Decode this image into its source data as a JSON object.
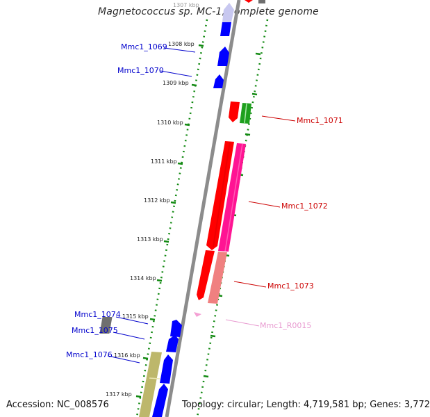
{
  "title": "Magnetococcus sp. MC-1, complete genome",
  "accession": "Accession: NC_008576",
  "topology": "Topology: circular; Length: 4,719,581 bp; Genes: 3,772",
  "scale_labels": [
    {
      "label": "1307 kbp"
    },
    {
      "label": "1308 kbp"
    },
    {
      "label": "1309 kbp"
    },
    {
      "label": "1310 kbp"
    },
    {
      "label": "1311 kbp"
    },
    {
      "label": "1312 kbp"
    },
    {
      "label": "1313 kbp"
    },
    {
      "label": "1314 kbp"
    },
    {
      "label": "1315 kbp"
    },
    {
      "label": "1316 kbp"
    },
    {
      "label": "1317 kbp"
    }
  ],
  "gene_labels": [
    {
      "name": "Mmc1_1069",
      "color": "#0000cc"
    },
    {
      "name": "Mmc1_1070",
      "color": "#0000cc"
    },
    {
      "name": "Mmc1_1071",
      "color": "#cc0000"
    },
    {
      "name": "Mmc1_1072",
      "color": "#cc0000"
    },
    {
      "name": "Mmc1_1073",
      "color": "#cc0000"
    },
    {
      "name": "Mmc1_R0015",
      "color": "#e89ad0"
    },
    {
      "name": "Mmc1_1074",
      "color": "#0000cc"
    },
    {
      "name": "Mmc1_1075",
      "color": "#0000cc"
    },
    {
      "name": "Mmc1_1076",
      "color": "#0000cc"
    }
  ],
  "colors": {
    "backbone": "#8c8c8c",
    "tick_green": "#138a13",
    "forward_gene": "#0000ff",
    "reverse_gene": "#ff0000",
    "pink_gene": "#ff1493",
    "salmon_gene": "#f08080",
    "gray_gene": "#6f6f6f",
    "olive_gene": "#bdb76b",
    "green_gene": "#1ea01e"
  }
}
